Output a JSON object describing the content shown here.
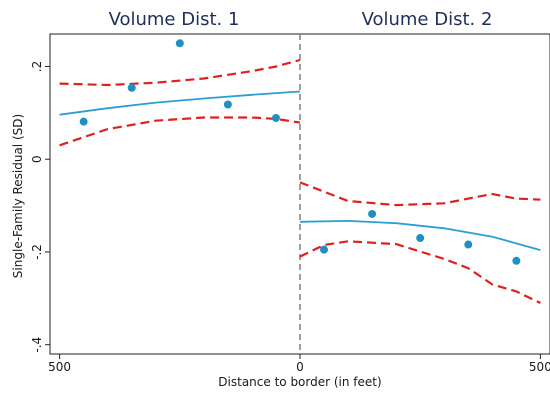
{
  "chart_data": {
    "type": "scatter",
    "panels": [
      {
        "title": "Volume Dist. 1"
      },
      {
        "title": "Volume Dist. 2"
      }
    ],
    "xlabel": "Distance to border (in feet)",
    "ylabel": "Single-Family Residual (SD)",
    "x_ticks": [
      {
        "value": -500,
        "label": "500"
      },
      {
        "value": 0,
        "label": "0"
      },
      {
        "value": 500,
        "label": "500"
      }
    ],
    "y_ticks": [
      {
        "value": 0.2,
        "label": ".2"
      },
      {
        "value": 0,
        "label": "0"
      },
      {
        "value": -0.2,
        "label": "-.2"
      },
      {
        "value": -0.4,
        "label": "-.4"
      }
    ],
    "xlim": [
      -520,
      520
    ],
    "ylim": [
      -0.42,
      0.27
    ],
    "border_line_x": 0,
    "colors": {
      "points": "#1f8fc4",
      "fit": "#2a9fd6",
      "ci": "#e02020",
      "border": "#808080"
    },
    "series": [
      {
        "kind": "points",
        "x": [
          -450,
          -350,
          -250,
          -150,
          -50
        ],
        "y": [
          0.081,
          0.154,
          0.25,
          0.118,
          0.089
        ]
      },
      {
        "kind": "points",
        "x": [
          50,
          150,
          250,
          350,
          450
        ],
        "y": [
          -0.195,
          -0.118,
          -0.17,
          -0.184,
          -0.219
        ]
      },
      {
        "kind": "fit",
        "x": [
          -500,
          -400,
          -300,
          -200,
          -100,
          0
        ],
        "y": [
          0.096,
          0.11,
          0.122,
          0.131,
          0.139,
          0.146
        ]
      },
      {
        "kind": "ci_upper",
        "x": [
          -500,
          -400,
          -300,
          -200,
          -100,
          -50,
          0
        ],
        "y": [
          0.163,
          0.16,
          0.165,
          0.174,
          0.19,
          0.2,
          0.214
        ]
      },
      {
        "kind": "ci_lower",
        "x": [
          -500,
          -400,
          -300,
          -200,
          -100,
          -50,
          0
        ],
        "y": [
          0.03,
          0.065,
          0.083,
          0.09,
          0.09,
          0.087,
          0.079
        ]
      },
      {
        "kind": "fit",
        "x": [
          0,
          100,
          200,
          300,
          400,
          500
        ],
        "y": [
          -0.135,
          -0.133,
          -0.138,
          -0.149,
          -0.167,
          -0.196
        ]
      },
      {
        "kind": "ci_upper",
        "x": [
          0,
          50,
          100,
          200,
          300,
          350,
          400,
          450,
          500
        ],
        "y": [
          -0.05,
          -0.07,
          -0.09,
          -0.099,
          -0.095,
          -0.085,
          -0.075,
          -0.085,
          -0.087
        ]
      },
      {
        "kind": "ci_lower",
        "x": [
          0,
          50,
          100,
          200,
          300,
          350,
          400,
          450,
          500
        ],
        "y": [
          -0.21,
          -0.185,
          -0.177,
          -0.183,
          -0.215,
          -0.235,
          -0.27,
          -0.285,
          -0.31
        ]
      }
    ]
  }
}
